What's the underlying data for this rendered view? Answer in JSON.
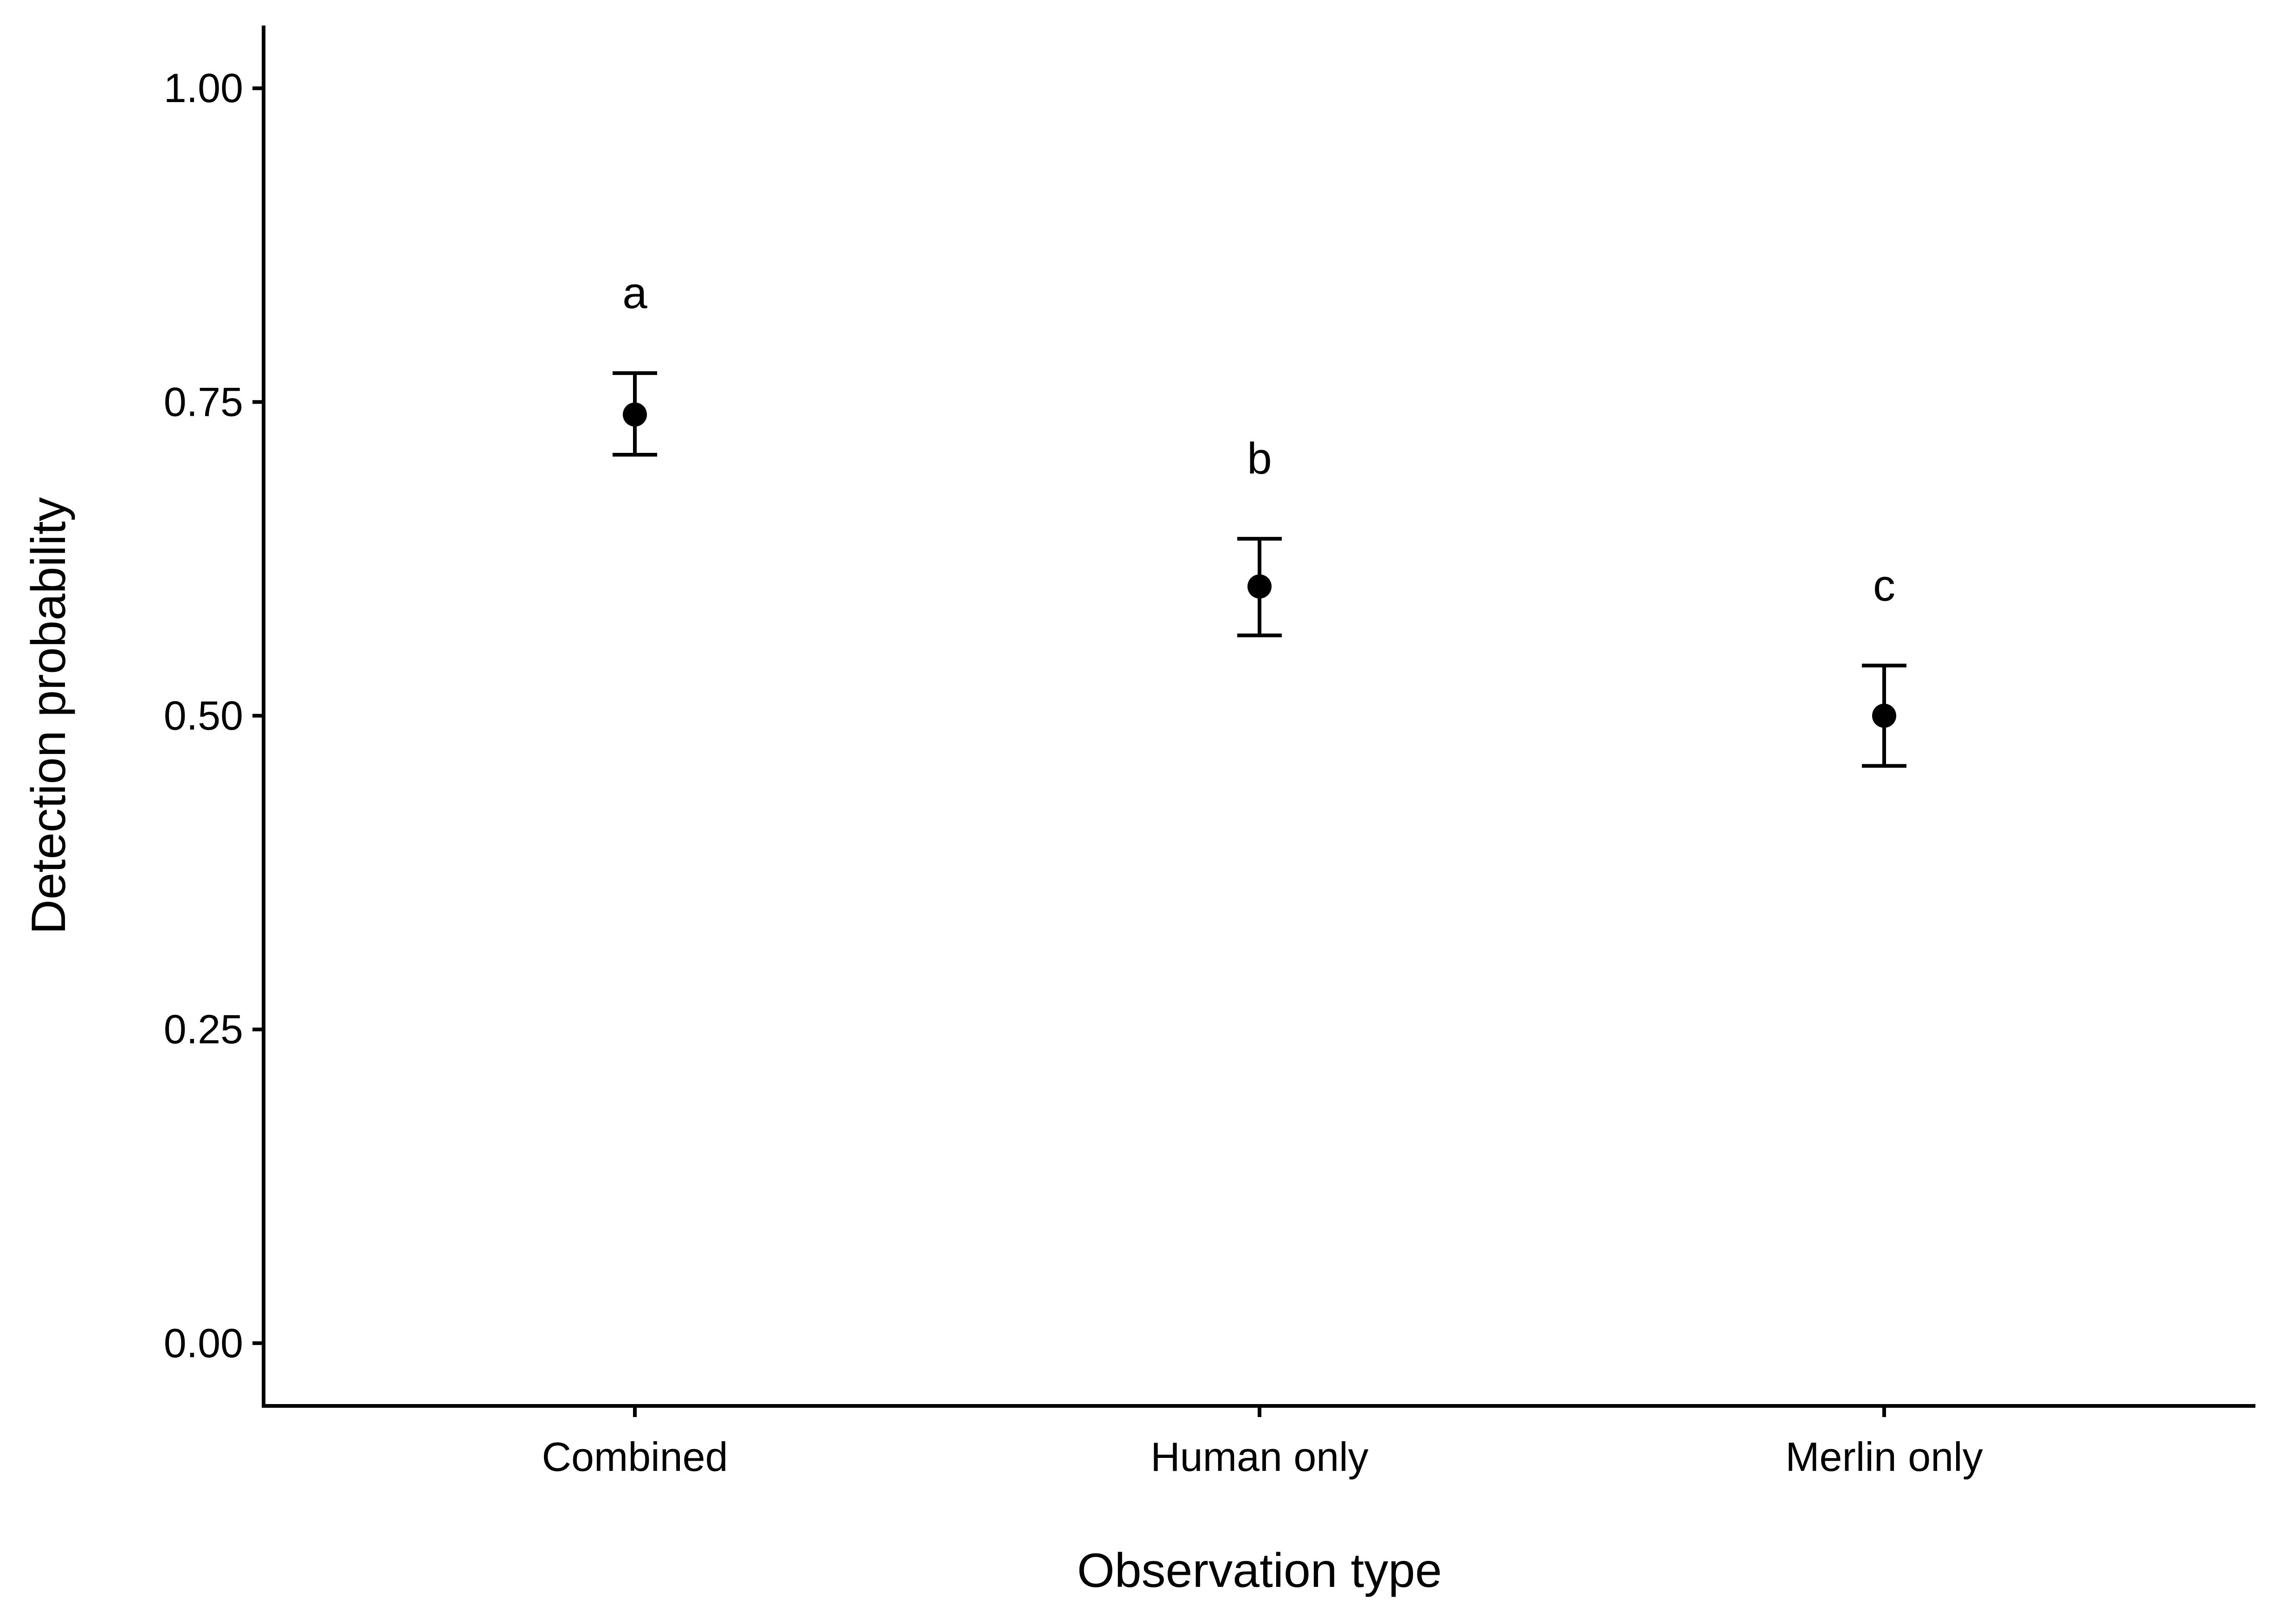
{
  "chart_data": {
    "type": "scatter",
    "title": "",
    "xlabel": "Observation type",
    "ylabel": "Detection probability",
    "categories": [
      "Combined",
      "Human only",
      "Merlin only"
    ],
    "points": [
      {
        "category": "Combined",
        "value": 0.74,
        "lower": 0.708,
        "upper": 0.773,
        "group_label": "a"
      },
      {
        "category": "Human only",
        "value": 0.603,
        "lower": 0.564,
        "upper": 0.641,
        "group_label": "b"
      },
      {
        "category": "Merlin only",
        "value": 0.5,
        "lower": 0.46,
        "upper": 0.54,
        "group_label": "c"
      }
    ],
    "ylim": [
      -0.05,
      1.05
    ],
    "yticks": [
      0.0,
      0.25,
      0.5,
      0.75,
      1.0
    ],
    "ytick_labels": [
      "0.00",
      "0.25",
      "0.50",
      "0.75",
      "1.00"
    ],
    "grid": false,
    "legend": "none",
    "colors": {
      "point": "#000000",
      "axis": "#000000"
    }
  }
}
